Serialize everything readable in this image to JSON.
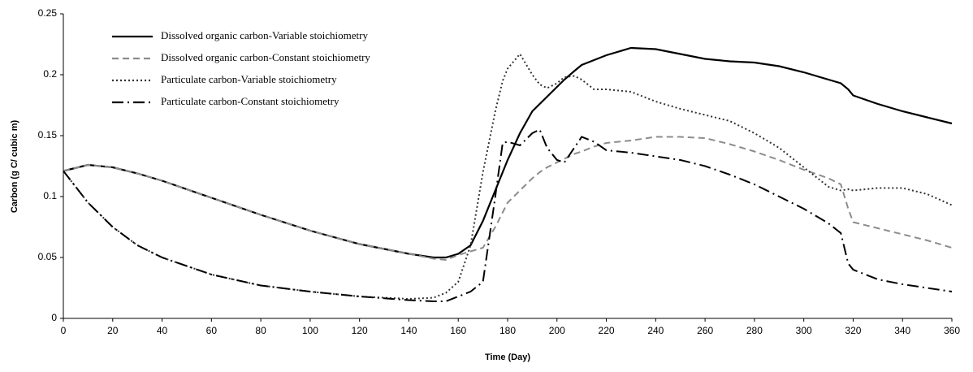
{
  "chart_data": {
    "type": "line",
    "x_label": "Time (Day)",
    "y_label": "Carbon  (g C/ cubic m)",
    "x": [
      0,
      10,
      20,
      30,
      40,
      60,
      80,
      100,
      120,
      140,
      150,
      155,
      160,
      165,
      170,
      175,
      178,
      180,
      185,
      190,
      193,
      196,
      200,
      203,
      207,
      210,
      215,
      220,
      230,
      240,
      250,
      260,
      270,
      280,
      290,
      300,
      310,
      315,
      318,
      320,
      330,
      340,
      350,
      360
    ],
    "series": [
      {
        "name": "Dissolved organic carbon-Variable stoichiometry",
        "color": "#000000",
        "dash": "solid",
        "values": [
          0.121,
          0.126,
          0.124,
          0.119,
          0.113,
          0.099,
          0.085,
          0.072,
          0.061,
          0.053,
          0.05,
          0.05,
          0.053,
          0.06,
          0.08,
          0.105,
          0.12,
          0.13,
          0.152,
          0.17,
          0.176,
          0.182,
          0.19,
          0.196,
          0.203,
          0.208,
          0.212,
          0.216,
          0.222,
          0.221,
          0.217,
          0.213,
          0.211,
          0.21,
          0.207,
          0.202,
          0.196,
          0.193,
          0.188,
          0.183,
          0.176,
          0.17,
          0.165,
          0.16
        ]
      },
      {
        "name": "Dissolved organic carbon-Constant stoichiometry",
        "color": "#8c8c8c",
        "dash": "dashed",
        "values": [
          0.121,
          0.126,
          0.124,
          0.119,
          0.113,
          0.099,
          0.085,
          0.072,
          0.061,
          0.053,
          0.049,
          0.048,
          0.052,
          0.055,
          0.058,
          0.075,
          0.087,
          0.095,
          0.105,
          0.115,
          0.12,
          0.124,
          0.128,
          0.131,
          0.135,
          0.137,
          0.141,
          0.144,
          0.146,
          0.149,
          0.149,
          0.148,
          0.143,
          0.137,
          0.13,
          0.122,
          0.115,
          0.11,
          0.09,
          0.079,
          0.074,
          0.069,
          0.064,
          0.058
        ]
      },
      {
        "name": "Particulate carbon-Variable stoichiometry",
        "color": "#333333",
        "dash": "dotted",
        "values": [
          0.121,
          0.095,
          0.075,
          0.06,
          0.05,
          0.036,
          0.027,
          0.022,
          0.018,
          0.016,
          0.017,
          0.021,
          0.03,
          0.06,
          0.12,
          0.17,
          0.195,
          0.205,
          0.217,
          0.2,
          0.192,
          0.189,
          0.193,
          0.198,
          0.199,
          0.196,
          0.188,
          0.188,
          0.186,
          0.178,
          0.172,
          0.167,
          0.162,
          0.152,
          0.14,
          0.124,
          0.108,
          0.105,
          0.106,
          0.105,
          0.107,
          0.107,
          0.102,
          0.093
        ]
      },
      {
        "name": "Particulate carbon-Constant stoichiometry",
        "color": "#000000",
        "dash": "dashdot",
        "values": [
          0.121,
          0.095,
          0.075,
          0.06,
          0.05,
          0.036,
          0.027,
          0.022,
          0.018,
          0.015,
          0.014,
          0.014,
          0.018,
          0.022,
          0.03,
          0.1,
          0.144,
          0.145,
          0.142,
          0.152,
          0.155,
          0.14,
          0.13,
          0.128,
          0.14,
          0.149,
          0.145,
          0.138,
          0.136,
          0.133,
          0.13,
          0.125,
          0.118,
          0.11,
          0.1,
          0.09,
          0.078,
          0.07,
          0.045,
          0.04,
          0.032,
          0.028,
          0.025,
          0.022
        ]
      }
    ],
    "xlim": [
      0,
      360
    ],
    "xticks": [
      0,
      20,
      40,
      60,
      80,
      100,
      120,
      140,
      160,
      180,
      200,
      220,
      240,
      260,
      280,
      300,
      320,
      340,
      360
    ],
    "ylim": [
      0,
      0.25
    ],
    "yticks": [
      0,
      0.05,
      0.1,
      0.15,
      0.2,
      0.25
    ],
    "grid": false,
    "legend": "top-left"
  }
}
